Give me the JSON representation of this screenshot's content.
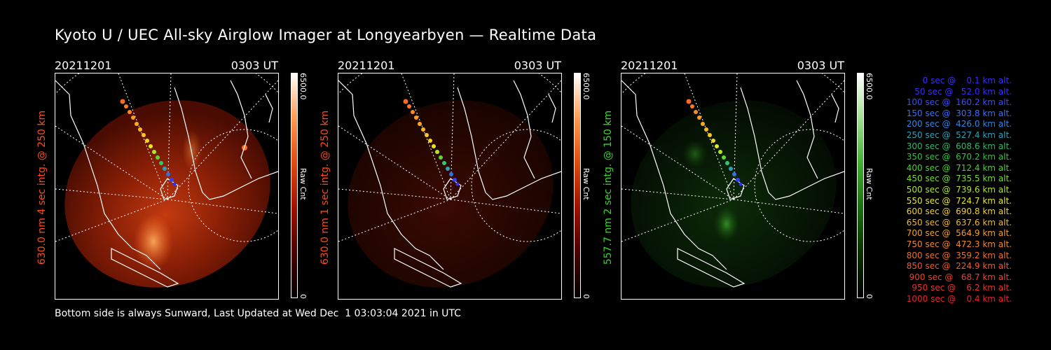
{
  "title": "Kyoto U / UEC All-sky Airglow Imager at Longyearbyen — Realtime Data",
  "panels": [
    {
      "date": "20211201",
      "time": "0303 UT",
      "ylabel": "630.0 nm 4 sec intg. @ 250 km",
      "ylabel_color": "#ff4a1a",
      "cbar_max": "6500.0",
      "cbar_unit": "Raw Cnt",
      "cbar_min": "0",
      "colormap": "red"
    },
    {
      "date": "20211201",
      "time": "0303 UT",
      "ylabel": "630.0 nm 1 sec intg. @ 250 km",
      "ylabel_color": "#ff4a1a",
      "cbar_max": "6500.0",
      "cbar_unit": "Raw Cnt",
      "cbar_min": "0",
      "colormap": "red"
    },
    {
      "date": "20211201",
      "time": "0303 UT",
      "ylabel": "557.7 nm 2 sec intg. @ 150 km",
      "ylabel_color": "#37d62a",
      "cbar_max": "6500.0",
      "cbar_unit": "Raw Cnt",
      "cbar_min": "0",
      "colormap": "green"
    }
  ],
  "footer": "Bottom side is always Sunward, Last Updated at Wed Dec  1 03:03:04 2021 in UTC",
  "legend": [
    {
      "text": "   0 sec @    0.1 km alt.",
      "color": "#3a2cff"
    },
    {
      "text": "  50 sec @   52.0 km alt.",
      "color": "#3a2cff"
    },
    {
      "text": " 100 sec @  160.2 km alt.",
      "color": "#3a4cff"
    },
    {
      "text": " 150 sec @  303.8 km alt.",
      "color": "#3a6cff"
    },
    {
      "text": " 200 sec @  426.0 km alt.",
      "color": "#2f86e6"
    },
    {
      "text": " 250 sec @  527.4 km alt.",
      "color": "#2aa2b8"
    },
    {
      "text": " 300 sec @  608.6 km alt.",
      "color": "#2ab86a"
    },
    {
      "text": " 350 sec @  670.2 km alt.",
      "color": "#2ac83a"
    },
    {
      "text": " 400 sec @  712.4 km alt.",
      "color": "#44d42a"
    },
    {
      "text": " 450 sec @  735.5 km alt.",
      "color": "#78dc2a"
    },
    {
      "text": " 500 sec @  739.6 km alt.",
      "color": "#b4e42a"
    },
    {
      "text": " 550 sec @  724.7 km alt.",
      "color": "#e6e62a"
    },
    {
      "text": " 600 sec @  690.8 km alt.",
      "color": "#f0d02a"
    },
    {
      "text": " 650 sec @  637.6 km alt.",
      "color": "#f0b82a"
    },
    {
      "text": " 700 sec @  564.9 km alt.",
      "color": "#f0a02a"
    },
    {
      "text": " 750 sec @  472.3 km alt.",
      "color": "#f0882a"
    },
    {
      "text": " 800 sec @  359.2 km alt.",
      "color": "#f0702a"
    },
    {
      "text": " 850 sec @  224.9 km alt.",
      "color": "#f05a2a"
    },
    {
      "text": " 900 sec @   68.7 km alt.",
      "color": "#f0402a"
    },
    {
      "text": " 950 sec @    6.2 km alt.",
      "color": "#f0302a"
    },
    {
      "text": "1000 sec @    0.4 km alt.",
      "color": "#f0202a"
    }
  ]
}
